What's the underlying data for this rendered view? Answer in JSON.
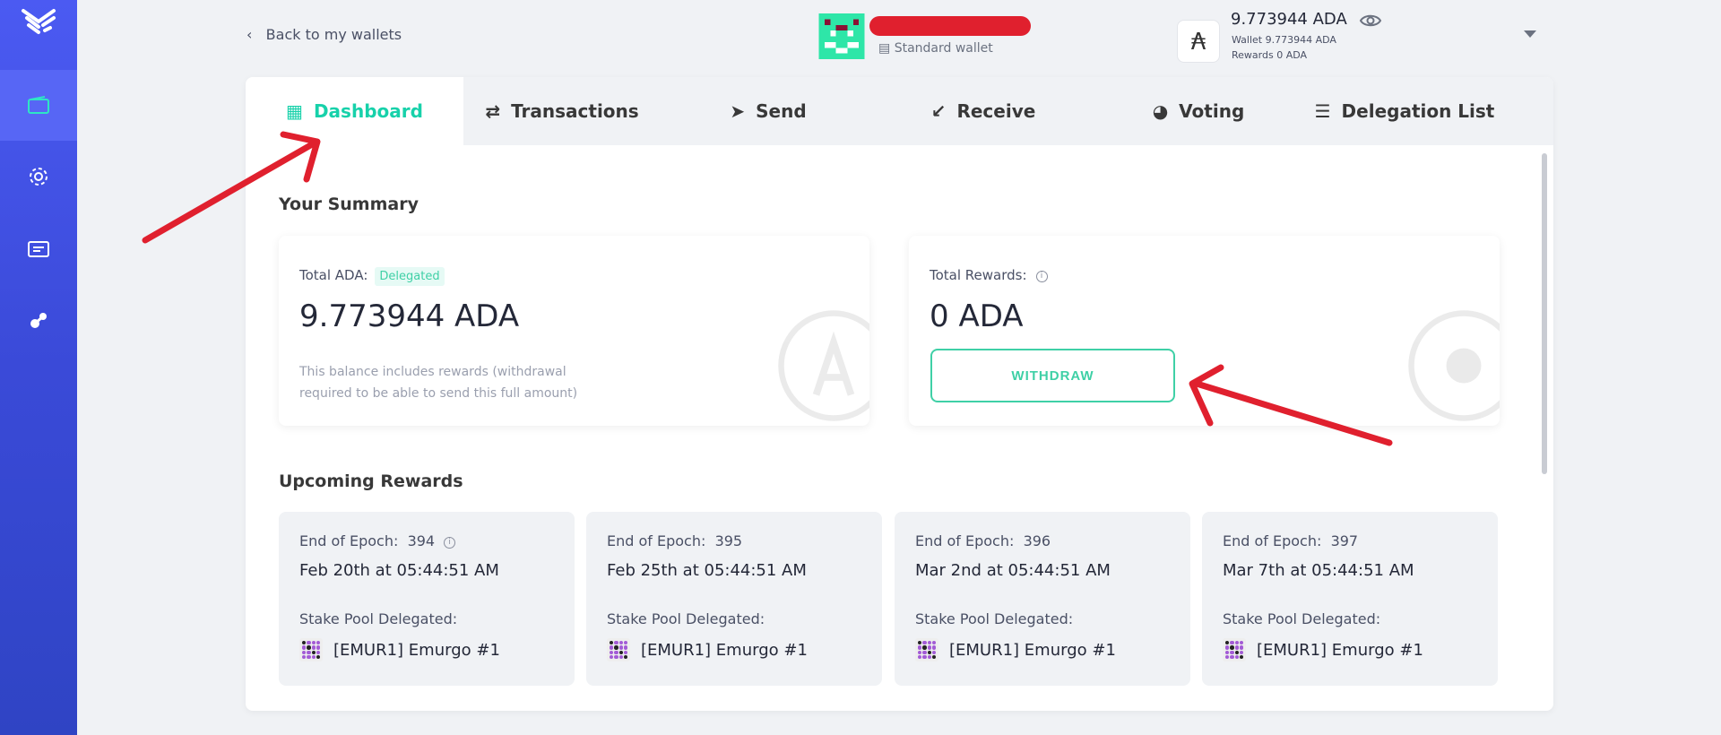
{
  "sidebar": {
    "items": [
      {
        "name": "wallet",
        "active": true
      },
      {
        "name": "settings"
      },
      {
        "name": "transfer"
      },
      {
        "name": "dapps"
      }
    ]
  },
  "header": {
    "back_label": "Back to my wallets",
    "wallet_type": "Standard wallet",
    "balance": "9.773944 ADA",
    "wallet_line": "Wallet 9.773944 ADA",
    "rewards_line": "Rewards 0 ADA"
  },
  "tabs": [
    {
      "label": "Dashboard",
      "icon": "grid-icon",
      "active": true
    },
    {
      "label": "Transactions",
      "icon": "exchange-icon"
    },
    {
      "label": "Send",
      "icon": "paper-plane-icon"
    },
    {
      "label": "Receive",
      "icon": "arrow-down-left-icon"
    },
    {
      "label": "Voting",
      "icon": "voting-icon"
    },
    {
      "label": "Delegation List",
      "icon": "list-icon"
    }
  ],
  "summary": {
    "title": "Your Summary",
    "total_label": "Total ADA:",
    "badge": "Delegated",
    "total_value": "9.773944 ADA",
    "note": "This balance includes rewards (withdrawal required to be able to send this full amount)",
    "rewards_label": "Total Rewards:",
    "rewards_value": "0 ADA",
    "withdraw": "WITHDRAW"
  },
  "upcoming": {
    "title": "Upcoming Rewards",
    "epoch_label": "End of Epoch:",
    "pool_label": "Stake Pool Delegated:",
    "items": [
      {
        "epoch": "394",
        "date": "Feb 20th at 05:44:51 AM",
        "pool": "[EMUR1] Emurgo #1"
      },
      {
        "epoch": "395",
        "date": "Feb 25th at 05:44:51 AM",
        "pool": "[EMUR1] Emurgo #1"
      },
      {
        "epoch": "396",
        "date": "Mar 2nd at 05:44:51 AM",
        "pool": "[EMUR1] Emurgo #1"
      },
      {
        "epoch": "397",
        "date": "Mar 7th at 05:44:51 AM",
        "pool": "[EMUR1] Emurgo #1"
      }
    ]
  },
  "colors": {
    "accent": "#17d1aa",
    "sidebar": "#3f4fe0",
    "annotation": "#e0202e"
  }
}
